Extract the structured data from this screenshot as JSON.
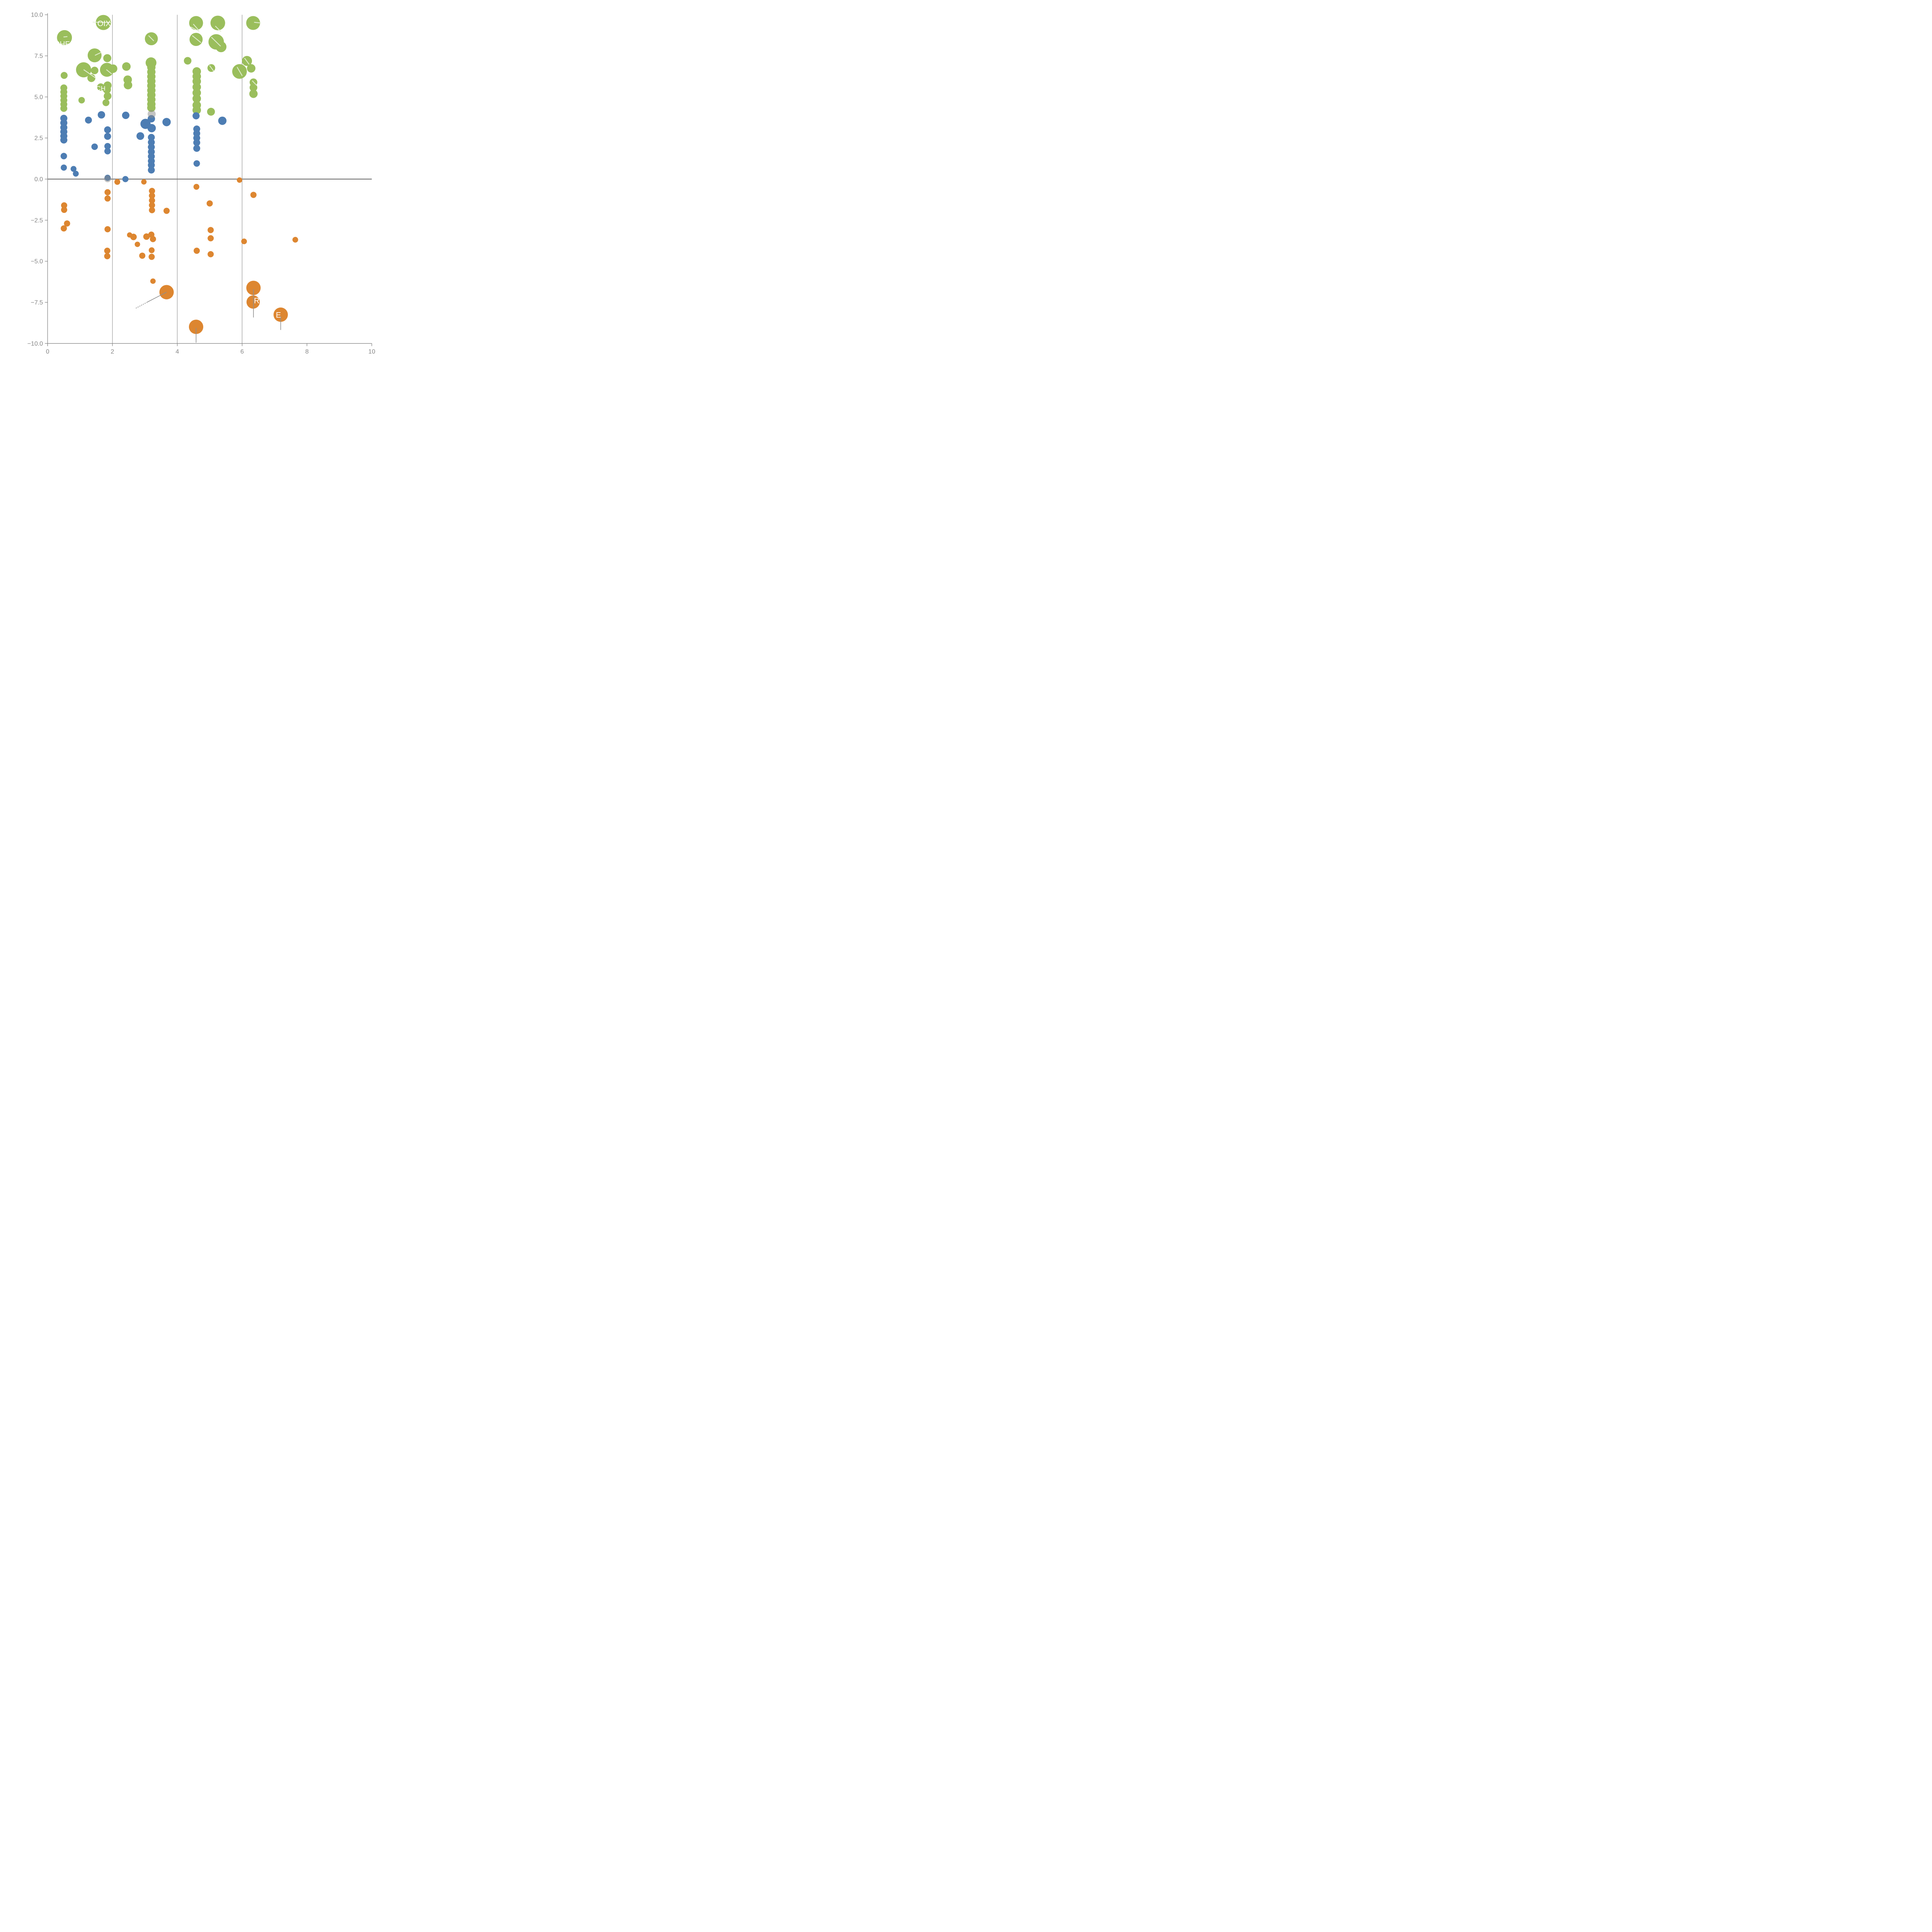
{
  "chart_data": {
    "type": "scatter",
    "title": "",
    "xlabel": "",
    "ylabel": "",
    "xlim": [
      0,
      10
    ],
    "ylim": [
      -10,
      10
    ],
    "grid": "vertical-only",
    "gridlines_x": [
      2,
      4,
      6
    ],
    "zero_line_y": 0,
    "x_ticks": [
      {
        "value": 0,
        "label": "0"
      },
      {
        "value": 2,
        "label": "2"
      },
      {
        "value": 4,
        "label": "4"
      },
      {
        "value": 6,
        "label": "6"
      },
      {
        "value": 8,
        "label": "8"
      },
      {
        "value": 10,
        "label": "10"
      }
    ],
    "y_ticks": [
      {
        "value": 10,
        "label": "10.0"
      },
      {
        "value": 7.5,
        "label": "7.5"
      },
      {
        "value": 5,
        "label": "5.0"
      },
      {
        "value": 2.5,
        "label": "2.5"
      },
      {
        "value": 0,
        "label": "0.0"
      },
      {
        "value": -2.5,
        "label": "−2.5"
      },
      {
        "value": -5,
        "label": "−5.0"
      },
      {
        "value": -7.5,
        "label": "−7.5"
      },
      {
        "value": -10,
        "label": "−10.0"
      }
    ],
    "series": [
      {
        "name": "green",
        "color": "#9ABE5C",
        "points": [
          [
            0.52,
            8.61,
            97
          ],
          [
            1.72,
            9.53,
            98
          ],
          [
            4.58,
            9.5,
            90
          ],
          [
            5.25,
            9.5,
            95
          ],
          [
            6.34,
            9.5,
            90
          ],
          [
            3.2,
            8.54,
            84
          ],
          [
            4.58,
            8.5,
            85
          ],
          [
            5.2,
            8.35,
            100
          ],
          [
            5.35,
            8.05,
            70
          ],
          [
            1.45,
            7.53,
            90
          ],
          [
            1.84,
            7.36,
            52
          ],
          [
            1.11,
            6.65,
            98
          ],
          [
            1.83,
            6.65,
            90
          ],
          [
            1.45,
            6.61,
            49
          ],
          [
            1.35,
            6.15,
            52
          ],
          [
            2.02,
            6.72,
            55
          ],
          [
            2.43,
            6.85,
            55
          ],
          [
            2.47,
            6.05,
            55
          ],
          [
            2.48,
            5.72,
            55
          ],
          [
            0.51,
            6.31,
            45
          ],
          [
            3.19,
            7.08,
            70
          ],
          [
            4.32,
            7.2,
            49
          ],
          [
            5.05,
            6.76,
            50
          ],
          [
            5.92,
            6.55,
            95
          ],
          [
            6.15,
            7.19,
            65
          ],
          [
            6.28,
            6.74,
            55
          ],
          [
            6.35,
            5.89,
            50
          ],
          [
            6.35,
            5.57,
            50
          ],
          [
            6.35,
            5.19,
            54
          ],
          [
            0.5,
            5.55,
            45
          ],
          [
            0.5,
            5.3,
            45
          ],
          [
            0.5,
            5.05,
            45
          ],
          [
            0.5,
            4.8,
            45
          ],
          [
            0.5,
            4.55,
            45
          ],
          [
            0.5,
            4.3,
            45
          ],
          [
            1.05,
            4.8,
            42
          ],
          [
            1.64,
            5.6,
            48
          ],
          [
            1.85,
            5.7,
            52
          ],
          [
            1.83,
            5.45,
            52
          ],
          [
            1.85,
            5.05,
            50
          ],
          [
            1.8,
            4.65,
            45
          ],
          [
            3.2,
            6.8,
            54
          ],
          [
            3.2,
            6.52,
            54
          ],
          [
            3.2,
            6.24,
            54
          ],
          [
            3.2,
            5.96,
            54
          ],
          [
            3.2,
            5.68,
            54
          ],
          [
            3.2,
            5.4,
            54
          ],
          [
            3.2,
            5.12,
            54
          ],
          [
            3.2,
            4.84,
            54
          ],
          [
            3.2,
            4.56,
            54
          ],
          [
            3.2,
            4.34,
            54
          ],
          [
            4.6,
            6.55,
            55
          ],
          [
            4.6,
            6.25,
            55
          ],
          [
            4.6,
            5.95,
            55
          ],
          [
            4.6,
            5.6,
            55
          ],
          [
            4.6,
            5.25,
            55
          ],
          [
            4.6,
            4.9,
            55
          ],
          [
            4.6,
            4.5,
            55
          ],
          [
            4.6,
            4.2,
            55
          ],
          [
            5.04,
            4.1,
            51
          ]
        ]
      },
      {
        "name": "blue",
        "color": "#4D7DB3",
        "points": [
          [
            0.5,
            3.7,
            46
          ],
          [
            0.5,
            3.42,
            46
          ],
          [
            0.5,
            3.14,
            46
          ],
          [
            0.5,
            2.88,
            46
          ],
          [
            0.5,
            2.62,
            46
          ],
          [
            0.5,
            2.38,
            46
          ],
          [
            0.5,
            1.4,
            42
          ],
          [
            0.5,
            0.7,
            40
          ],
          [
            0.8,
            0.62,
            38
          ],
          [
            0.87,
            0.33,
            38
          ],
          [
            1.26,
            3.59,
            45
          ],
          [
            1.66,
            3.91,
            48
          ],
          [
            2.41,
            3.88,
            48
          ],
          [
            1.45,
            1.97,
            42
          ],
          [
            1.85,
            3.0,
            45
          ],
          [
            1.85,
            2.6,
            45
          ],
          [
            1.85,
            2.0,
            42
          ],
          [
            1.85,
            1.7,
            42
          ],
          [
            1.85,
            0.08,
            40
          ],
          [
            2.4,
            0.0,
            40
          ],
          [
            2.86,
            2.62,
            50
          ],
          [
            3.2,
            3.67,
            48
          ],
          [
            3.02,
            3.36,
            66
          ],
          [
            3.21,
            3.1,
            54
          ],
          [
            3.2,
            2.54,
            45
          ],
          [
            3.2,
            2.24,
            45
          ],
          [
            3.2,
            1.95,
            45
          ],
          [
            3.2,
            1.66,
            45
          ],
          [
            3.2,
            1.38,
            45
          ],
          [
            3.2,
            1.1,
            45
          ],
          [
            3.2,
            0.85,
            45
          ],
          [
            3.2,
            0.55,
            45
          ],
          [
            3.67,
            3.47,
            54
          ],
          [
            4.58,
            3.85,
            46
          ],
          [
            4.6,
            3.05,
            45
          ],
          [
            4.6,
            2.78,
            45
          ],
          [
            4.6,
            2.5,
            45
          ],
          [
            4.6,
            2.22,
            45
          ],
          [
            4.6,
            1.87,
            45
          ],
          [
            4.6,
            0.95,
            42
          ],
          [
            5.39,
            3.55,
            54
          ]
        ]
      },
      {
        "name": "orange",
        "color": "#DD8630",
        "points": [
          [
            2.15,
            -0.17,
            38
          ],
          [
            2.97,
            -0.17,
            35
          ],
          [
            5.92,
            -0.06,
            35
          ],
          [
            1.85,
            -0.8,
            40
          ],
          [
            1.85,
            -1.18,
            40
          ],
          [
            0.51,
            -1.6,
            40
          ],
          [
            0.51,
            -1.87,
            40
          ],
          [
            0.6,
            -2.7,
            40
          ],
          [
            0.5,
            -3.0,
            40
          ],
          [
            1.85,
            -3.05,
            40
          ],
          [
            3.22,
            -0.72,
            40
          ],
          [
            3.22,
            -1.01,
            40
          ],
          [
            3.22,
            -1.3,
            40
          ],
          [
            3.22,
            -1.59,
            40
          ],
          [
            3.22,
            -1.89,
            40
          ],
          [
            3.67,
            -1.93,
            40
          ],
          [
            4.59,
            -0.47,
            38
          ],
          [
            6.35,
            -0.96,
            40
          ],
          [
            5.0,
            -1.48,
            40
          ],
          [
            2.53,
            -3.4,
            34
          ],
          [
            2.65,
            -3.52,
            42
          ],
          [
            2.77,
            -3.97,
            35
          ],
          [
            3.05,
            -3.5,
            42
          ],
          [
            3.2,
            -3.38,
            40
          ],
          [
            3.25,
            -3.65,
            40
          ],
          [
            2.92,
            -4.66,
            40
          ],
          [
            3.21,
            -4.33,
            38
          ],
          [
            3.21,
            -4.73,
            40
          ],
          [
            1.84,
            -4.36,
            40
          ],
          [
            1.84,
            -4.69,
            40
          ],
          [
            4.6,
            -4.36,
            40
          ],
          [
            5.03,
            -3.1,
            40
          ],
          [
            5.03,
            -3.6,
            40
          ],
          [
            5.03,
            -4.57,
            40
          ],
          [
            6.06,
            -3.79,
            37
          ],
          [
            7.64,
            -3.69,
            37
          ],
          [
            3.25,
            -6.21,
            35
          ],
          [
            3.67,
            -6.88,
            93
          ],
          [
            4.58,
            -8.99,
            93
          ],
          [
            6.35,
            -6.62,
            93
          ],
          [
            6.34,
            -7.48,
            86
          ],
          [
            7.19,
            -8.25,
            93
          ]
        ]
      },
      {
        "name": "gray",
        "color": "#8A8A8A",
        "opacity": 0.5,
        "points": [
          [
            1.85,
            0.02,
            45
          ],
          [
            3.21,
            3.96,
            52
          ]
        ]
      }
    ],
    "point_labels": [
      {
        "text": "OIX",
        "x": 1.74,
        "y": 9.47,
        "size": 20
      },
      {
        "text": "CHE",
        "x": 0.45,
        "y": 8.22,
        "size": 19
      },
      {
        "text": "ACH",
        "x": 1.57,
        "y": 5.52,
        "size": 17
      },
      {
        "text": "R",
        "x": 6.45,
        "y": -7.4,
        "size": 20
      },
      {
        "text": "E",
        "x": 7.12,
        "y": -8.27,
        "size": 20
      }
    ],
    "slash_marks": [
      [
        1.4,
        9.55,
        1.97,
        9.53
      ],
      [
        0.5,
        8.65,
        0.6,
        8.67
      ],
      [
        4.5,
        9.42,
        4.66,
        9.06
      ],
      [
        4.42,
        9.25,
        4.67,
        9.0
      ],
      [
        5.18,
        9.3,
        5.34,
        8.98
      ],
      [
        6.38,
        9.54,
        6.57,
        9.5
      ],
      [
        3.12,
        8.72,
        3.27,
        8.42
      ],
      [
        4.47,
        8.72,
        4.72,
        8.32
      ],
      [
        5.06,
        8.62,
        5.33,
        8.1
      ],
      [
        1.47,
        7.54,
        1.65,
        7.71
      ],
      [
        1.12,
        6.65,
        1.47,
        6.17
      ],
      [
        1.82,
        6.65,
        1.97,
        6.41
      ],
      [
        5.85,
        6.8,
        6.0,
        6.3
      ],
      [
        5.0,
        6.9,
        5.12,
        6.58
      ],
      [
        6.08,
        7.35,
        6.21,
        7.0
      ],
      [
        6.32,
        5.97,
        6.44,
        5.72
      ]
    ],
    "leader_lines": [
      {
        "x1": 3.67,
        "y1": -6.88,
        "x2": 3.08,
        "y2": -7.48,
        "dashed": false
      },
      {
        "x1": 3.08,
        "y1": -7.48,
        "x2": 2.7,
        "y2": -7.88,
        "dashed": true
      },
      {
        "x1": 6.35,
        "y1": -6.7,
        "x2": 6.35,
        "y2": -8.42,
        "dashed": false
      },
      {
        "x1": 4.58,
        "y1": -9.05,
        "x2": 4.58,
        "y2": -9.95,
        "dashed": false
      },
      {
        "x1": 7.19,
        "y1": -8.35,
        "x2": 7.19,
        "y2": -9.18,
        "dashed": false
      }
    ],
    "legend": "none"
  },
  "style_colors": {
    "background": "#FFFFFF",
    "axis": "#878787",
    "tick_text": "#878787",
    "gridline": "#666666",
    "zero_line": "#808080",
    "leader_line": "#8F8F8F",
    "slash": "#E6F0D8",
    "label_text": "#FFFFFF"
  }
}
